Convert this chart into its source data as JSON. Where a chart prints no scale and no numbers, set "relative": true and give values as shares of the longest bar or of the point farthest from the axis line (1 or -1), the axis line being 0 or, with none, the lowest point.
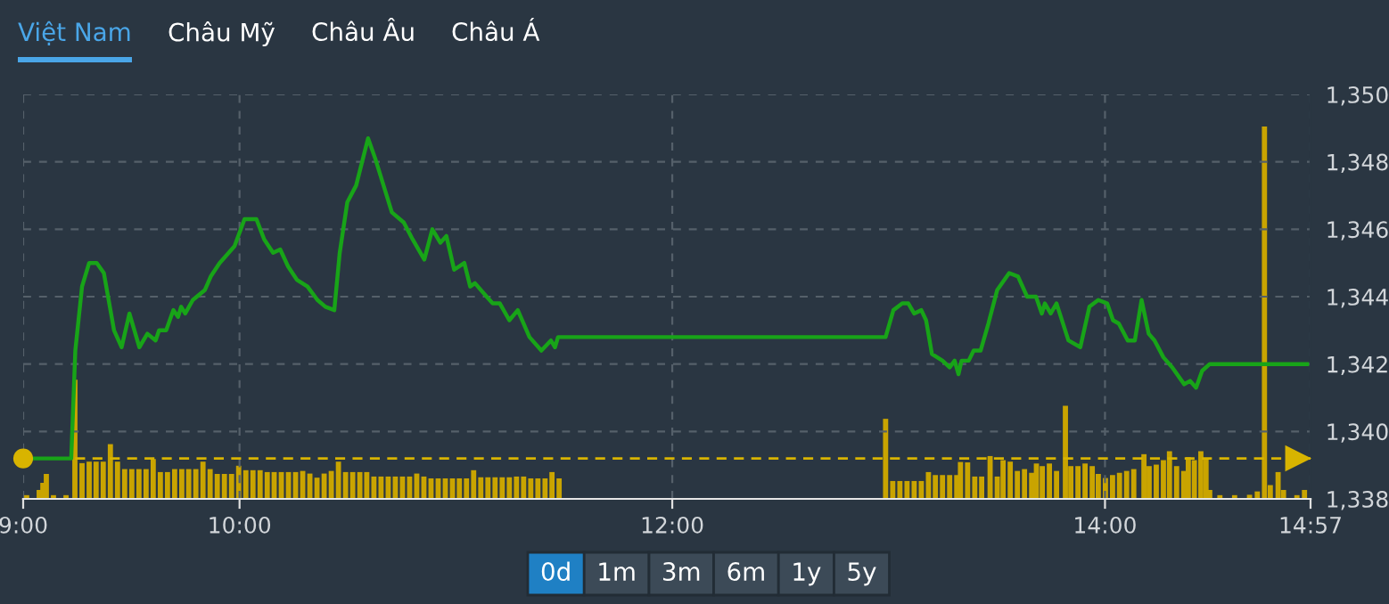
{
  "chart_data": [
    {
      "type": "line",
      "color": "#18a418",
      "x": [
        9.0,
        9.222,
        9.241,
        9.272,
        9.305,
        9.34,
        9.373,
        9.42,
        9.455,
        9.491,
        9.537,
        9.574,
        9.612,
        9.628,
        9.661,
        9.694,
        9.716,
        9.73,
        9.749,
        9.784,
        9.84,
        9.867,
        9.908,
        9.977,
        10.023,
        10.059,
        10.078,
        10.114,
        10.155,
        10.188,
        10.224,
        10.265,
        10.314,
        10.36,
        10.397,
        10.438,
        10.463,
        10.498,
        10.539,
        10.594,
        10.627,
        10.704,
        10.759,
        10.8,
        10.854,
        10.891,
        10.928,
        10.956,
        10.992,
        11.039,
        11.066,
        11.088,
        11.142,
        11.17,
        11.203,
        11.247,
        11.286,
        11.34,
        11.395,
        11.439,
        11.458,
        11.472,
        12.986,
        13.022,
        13.063,
        13.091,
        13.118,
        13.151,
        13.173,
        13.2,
        13.249,
        13.282,
        13.305,
        13.323,
        13.337,
        13.37,
        13.393,
        13.425,
        13.461,
        13.502,
        13.557,
        13.598,
        13.64,
        13.681,
        13.708,
        13.722,
        13.749,
        13.776,
        13.831,
        13.886,
        13.928,
        13.969,
        14.01,
        14.037,
        14.064,
        14.105,
        14.138,
        14.169,
        14.202,
        14.229,
        14.27,
        14.311,
        14.366,
        14.393,
        14.421,
        14.449,
        14.484,
        14.934
      ],
      "values": [
        1339.2,
        1339.2,
        1342.4,
        1344.3,
        1345.0,
        1345.0,
        1344.7,
        1343.0,
        1342.5,
        1343.5,
        1342.5,
        1342.9,
        1342.7,
        1343.0,
        1343.0,
        1343.6,
        1343.4,
        1343.7,
        1343.5,
        1343.9,
        1344.2,
        1344.6,
        1345.0,
        1345.5,
        1346.3,
        1346.3,
        1346.3,
        1345.7,
        1345.3,
        1345.4,
        1344.9,
        1344.5,
        1344.3,
        1343.9,
        1343.7,
        1343.6,
        1345.3,
        1346.8,
        1347.3,
        1348.7,
        1348.1,
        1346.5,
        1346.2,
        1345.7,
        1345.1,
        1346.0,
        1345.6,
        1345.8,
        1344.8,
        1345.0,
        1344.3,
        1344.4,
        1344.0,
        1343.8,
        1343.8,
        1343.3,
        1343.6,
        1342.8,
        1342.4,
        1342.7,
        1342.5,
        1342.8,
        1342.8,
        1343.6,
        1343.8,
        1343.8,
        1343.5,
        1343.6,
        1343.3,
        1342.3,
        1342.1,
        1341.9,
        1342.1,
        1341.7,
        1342.1,
        1342.1,
        1342.4,
        1342.4,
        1343.2,
        1344.2,
        1344.7,
        1344.6,
        1344.0,
        1344.0,
        1343.5,
        1343.8,
        1343.5,
        1343.8,
        1342.7,
        1342.5,
        1343.7,
        1343.9,
        1343.8,
        1343.3,
        1343.2,
        1342.7,
        1342.7,
        1343.9,
        1342.9,
        1342.7,
        1342.2,
        1341.9,
        1341.4,
        1341.5,
        1341.3,
        1341.8,
        1342.0,
        1342.0
      ],
      "xlim": [
        9,
        14.95
      ],
      "xticks": [
        {
          "value": 9,
          "label": "9:00"
        },
        {
          "value": 10,
          "label": "10:00"
        },
        {
          "value": 12,
          "label": "12:00"
        },
        {
          "value": 14,
          "label": "14:00"
        },
        {
          "value": 14.95,
          "label": "14:57"
        }
      ],
      "ylim": [
        1338,
        1350
      ],
      "yticks": [
        {
          "value": 1338,
          "label": "1,338"
        },
        {
          "value": 1340,
          "label": "1,340"
        },
        {
          "value": 1342,
          "label": "1,342"
        },
        {
          "value": 1344,
          "label": "1,344"
        },
        {
          "value": 1346,
          "label": "1,346"
        },
        {
          "value": 1348,
          "label": "1,348"
        },
        {
          "value": 1350,
          "label": "1,350"
        }
      ],
      "grid": true,
      "ref_lines": [
        {
          "axis": "y",
          "value": 1339.2,
          "color": "#d8b400",
          "line_style": "dashed"
        }
      ],
      "annotations": [
        "Việt Nam",
        "Châu Mỹ",
        "Châu Âu",
        "Châu Á",
        "0d",
        "1m",
        "3m",
        "6m",
        "1y",
        "5y"
      ]
    },
    {
      "type": "bar",
      "color": "#c9a400",
      "relative": true,
      "xlim": [
        9,
        14.95
      ],
      "tick_labels": false,
      "x": [
        9.016,
        9.074,
        9.091,
        9.107,
        9.14,
        9.198,
        9.239,
        9.272,
        9.305,
        9.337,
        9.37,
        9.403,
        9.436,
        9.469,
        9.502,
        9.535,
        9.568,
        9.601,
        9.634,
        9.667,
        9.7,
        9.733,
        9.765,
        9.798,
        9.831,
        9.864,
        9.897,
        9.93,
        9.963,
        9.996,
        10.029,
        10.062,
        10.095,
        10.128,
        10.16,
        10.193,
        10.226,
        10.259,
        10.292,
        10.325,
        10.358,
        10.391,
        10.424,
        10.457,
        10.49,
        10.523,
        10.556,
        10.588,
        10.621,
        10.654,
        10.687,
        10.72,
        10.753,
        10.786,
        10.819,
        10.852,
        10.885,
        10.918,
        10.951,
        10.984,
        11.016,
        11.049,
        11.082,
        11.115,
        11.148,
        11.181,
        11.214,
        11.247,
        11.28,
        11.313,
        11.346,
        11.379,
        11.412,
        11.444,
        11.477,
        12.986,
        13.019,
        13.052,
        13.085,
        13.118,
        13.151,
        13.184,
        13.216,
        13.249,
        13.282,
        13.315,
        13.332,
        13.365,
        13.398,
        13.43,
        13.469,
        13.502,
        13.529,
        13.562,
        13.595,
        13.628,
        13.661,
        13.683,
        13.71,
        13.743,
        13.776,
        13.817,
        13.842,
        13.875,
        13.908,
        13.941,
        13.969,
        14.002,
        14.035,
        14.067,
        14.1,
        14.133,
        14.18,
        14.204,
        14.237,
        14.27,
        14.298,
        14.331,
        14.364,
        14.385,
        14.413,
        14.443,
        14.467,
        14.484,
        14.531,
        14.599,
        14.668,
        14.704,
        14.737,
        14.764,
        14.8,
        14.825,
        14.887,
        14.922
      ],
      "values": [
        0.01,
        0.024,
        0.043,
        0.067,
        0.01,
        0.01,
        0.32,
        0.096,
        0.1,
        0.1,
        0.1,
        0.147,
        0.1,
        0.08,
        0.08,
        0.08,
        0.08,
        0.107,
        0.072,
        0.072,
        0.08,
        0.08,
        0.08,
        0.08,
        0.1,
        0.08,
        0.067,
        0.067,
        0.067,
        0.089,
        0.077,
        0.077,
        0.077,
        0.072,
        0.072,
        0.072,
        0.072,
        0.072,
        0.075,
        0.068,
        0.057,
        0.068,
        0.075,
        0.1,
        0.072,
        0.072,
        0.072,
        0.072,
        0.06,
        0.06,
        0.06,
        0.06,
        0.06,
        0.06,
        0.068,
        0.06,
        0.055,
        0.055,
        0.055,
        0.055,
        0.055,
        0.055,
        0.077,
        0.058,
        0.058,
        0.058,
        0.058,
        0.058,
        0.06,
        0.06,
        0.055,
        0.055,
        0.055,
        0.072,
        0.055,
        0.215,
        0.048,
        0.048,
        0.048,
        0.048,
        0.048,
        0.072,
        0.064,
        0.064,
        0.064,
        0.064,
        0.099,
        0.098,
        0.06,
        0.06,
        0.115,
        0.06,
        0.104,
        0.1,
        0.075,
        0.08,
        0.07,
        0.095,
        0.088,
        0.095,
        0.075,
        0.25,
        0.088,
        0.088,
        0.095,
        0.088,
        0.067,
        0.056,
        0.064,
        0.07,
        0.075,
        0.08,
        0.12,
        0.088,
        0.092,
        0.104,
        0.128,
        0.088,
        0.075,
        0.112,
        0.104,
        0.128,
        0.108,
        0.024,
        0.01,
        0.01,
        0.011,
        0.02,
        1.0,
        0.037,
        0.072,
        0.024,
        0.01,
        0.024
      ]
    }
  ]
}
